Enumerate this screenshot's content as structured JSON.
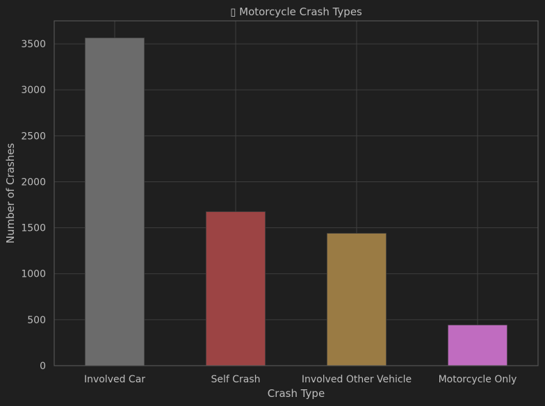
{
  "chart_data": {
    "type": "bar",
    "title": "▯ Motorcycle Crash Types",
    "xlabel": "Crash Type",
    "ylabel": "Number of Crashes",
    "categories": [
      "Involved Car",
      "Self Crash",
      "Involved Other Vehicle",
      "Motorcycle Only"
    ],
    "values": [
      3565,
      1675,
      1440,
      443
    ],
    "colors": [
      "#6b6b6b",
      "#9c4444",
      "#9a7b44",
      "#c06cc0"
    ],
    "ylim": [
      0,
      3750
    ],
    "yticks": [
      0,
      500,
      1000,
      1500,
      2000,
      2500,
      3000,
      3500
    ],
    "grid": true,
    "background": "#1f1f1f"
  }
}
